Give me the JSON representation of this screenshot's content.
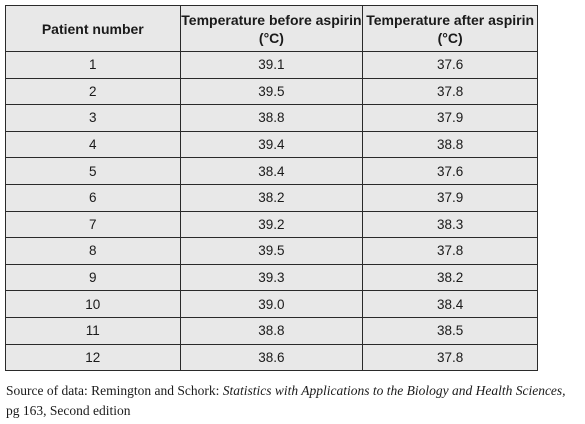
{
  "table": {
    "headers": [
      "Patient number",
      "Temperature before aspirin (°C)",
      "Temperature after aspirin (°C)"
    ],
    "rows": [
      [
        "1",
        "39.1",
        "37.6"
      ],
      [
        "2",
        "39.5",
        "37.8"
      ],
      [
        "3",
        "38.8",
        "37.9"
      ],
      [
        "4",
        "39.4",
        "38.8"
      ],
      [
        "5",
        "38.4",
        "37.6"
      ],
      [
        "6",
        "38.2",
        "37.9"
      ],
      [
        "7",
        "39.2",
        "38.3"
      ],
      [
        "8",
        "39.5",
        "37.8"
      ],
      [
        "9",
        "39.3",
        "38.2"
      ],
      [
        "10",
        "39.0",
        "38.4"
      ],
      [
        "11",
        "38.8",
        "38.5"
      ],
      [
        "12",
        "38.6",
        "37.8"
      ]
    ]
  },
  "source": {
    "prefix": "Source of data: Remington and Schork: ",
    "title": "Statistics with Applications to the Biology and Health Sciences,",
    "suffix": " pg 163, Second edition"
  },
  "colors": {
    "table_background": "#e8e8e8",
    "border": "#2a2a2a",
    "text": "#1a1a1a"
  }
}
